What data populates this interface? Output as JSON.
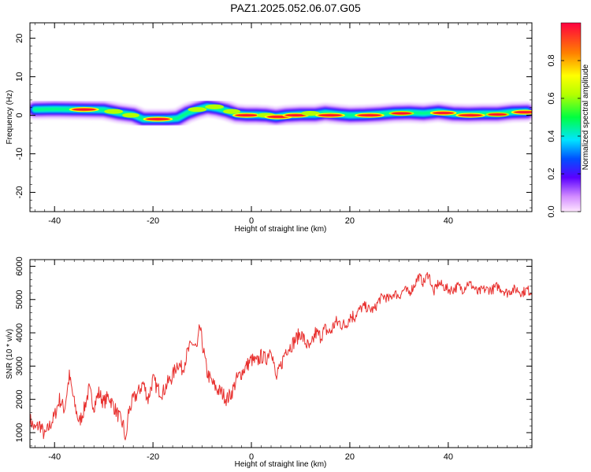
{
  "title": "PAZ1.2025.052.06.07.G05",
  "colors": {
    "snr_line": "#e8302e",
    "spectrogram_scale": [
      "#ff00ff",
      "#8000ff",
      "#0000ff",
      "#00ffff",
      "#00ff00",
      "#ffff00",
      "#ff8000",
      "#ff0033"
    ]
  },
  "chart_data": [
    {
      "type": "heatmap",
      "title": "",
      "xlabel": "Height of straight line (km)",
      "ylabel": "Frequency (Hz)",
      "xlim": [
        -45,
        57
      ],
      "ylim": [
        -25,
        24
      ],
      "xticks": [
        -40,
        -20,
        0,
        20,
        40
      ],
      "yticks": [
        -20,
        -10,
        0,
        10,
        20
      ],
      "grid": false,
      "colorbar": {
        "label": "Normalized spectral amplitude",
        "range": [
          0.0,
          1.0
        ],
        "ticks": [
          "0.0",
          "0.2",
          "0.4",
          "0.6",
          "0.8"
        ]
      },
      "ridge": {
        "x": [
          -44,
          -40,
          -35,
          -30,
          -27,
          -24,
          -22,
          -19,
          -17,
          -15,
          -13,
          -11,
          -9,
          -7,
          -5,
          -3,
          -1,
          1,
          3,
          5,
          7,
          10,
          13,
          15,
          18,
          20,
          23,
          26,
          29,
          32,
          35,
          38,
          41,
          44,
          47,
          50,
          53,
          56
        ],
        "y": [
          1.5,
          1.6,
          1.5,
          1.4,
          0.6,
          0.1,
          -1.0,
          -1.0,
          -1.0,
          -0.8,
          0.6,
          1.5,
          2.2,
          1.8,
          1.2,
          0.3,
          0.1,
          0.1,
          0.0,
          -0.4,
          0.0,
          0.2,
          0.2,
          0.6,
          0.2,
          0.0,
          0.1,
          0.3,
          0.6,
          0.7,
          0.5,
          0.9,
          0.4,
          0.3,
          0.4,
          0.4,
          0.8,
          0.9
        ],
        "peaks": [
          {
            "x": -34,
            "y": 1.5,
            "amp": 0.95
          },
          {
            "x": -28,
            "y": 1.0,
            "amp": 0.6
          },
          {
            "x": -24.5,
            "y": 0.0,
            "amp": 0.55
          },
          {
            "x": -19,
            "y": -1.0,
            "amp": 0.95
          },
          {
            "x": -11,
            "y": 1.5,
            "amp": 0.6
          },
          {
            "x": -7.5,
            "y": 2.2,
            "amp": 0.6
          },
          {
            "x": -4,
            "y": 1.0,
            "amp": 0.55
          },
          {
            "x": -1,
            "y": 0.0,
            "amp": 0.9
          },
          {
            "x": 3,
            "y": 0.0,
            "amp": 0.6
          },
          {
            "x": 5.5,
            "y": -0.4,
            "amp": 0.9
          },
          {
            "x": 9,
            "y": 0.0,
            "amp": 0.85
          },
          {
            "x": 12,
            "y": 0.5,
            "amp": 0.6
          },
          {
            "x": 16,
            "y": 0.0,
            "amp": 0.95
          },
          {
            "x": 24,
            "y": 0.0,
            "amp": 0.95
          },
          {
            "x": 30.5,
            "y": 0.5,
            "amp": 0.8
          },
          {
            "x": 39,
            "y": 0.6,
            "amp": 0.85
          },
          {
            "x": 44.5,
            "y": 0.0,
            "amp": 0.95
          },
          {
            "x": 50,
            "y": 0.2,
            "amp": 0.75
          },
          {
            "x": 55.5,
            "y": 0.8,
            "amp": 0.85
          }
        ]
      }
    },
    {
      "type": "line",
      "title": "",
      "xlabel": "Height of straight line (km)",
      "ylabel": "SNR (10 * v/v)",
      "xlim": [
        -45,
        57
      ],
      "ylim": [
        550,
        6200
      ],
      "xticks": [
        -40,
        -20,
        0,
        20,
        40
      ],
      "yticks": [
        1000,
        2000,
        3000,
        4000,
        5000,
        6000
      ],
      "grid": false,
      "series": [
        {
          "name": "",
          "x": [
            -45,
            -44,
            -43,
            -42,
            -41,
            -40,
            -39,
            -38,
            -37,
            -36,
            -35,
            -34,
            -33,
            -32,
            -31,
            -30,
            -29,
            -28,
            -27,
            -26,
            -25.5,
            -25,
            -24,
            -23,
            -22,
            -21,
            -20,
            -19,
            -18,
            -17,
            -16,
            -15,
            -14,
            -13,
            -12,
            -11,
            -10.5,
            -10,
            -9,
            -8,
            -7,
            -6,
            -5,
            -4,
            -3,
            -2,
            -1,
            0,
            1,
            2,
            3,
            4,
            5,
            6,
            7,
            8,
            9,
            10,
            11,
            12,
            13,
            14,
            15,
            16,
            17,
            18,
            19,
            20,
            21,
            22,
            23,
            24,
            25,
            26,
            27,
            28,
            29,
            30,
            31,
            32,
            33,
            34,
            35,
            36,
            37,
            38,
            39,
            40,
            41,
            42,
            43,
            44,
            45,
            46,
            47,
            48,
            49,
            50,
            51,
            52,
            53,
            54,
            55,
            56,
            57
          ],
          "values": [
            1400,
            1100,
            1250,
            900,
            1200,
            1500,
            2000,
            1700,
            2700,
            1900,
            1300,
            1700,
            2300,
            1800,
            2200,
            1900,
            2100,
            1800,
            1500,
            1200,
            700,
            1600,
            2000,
            2200,
            2500,
            2000,
            2600,
            2300,
            2200,
            2500,
            2700,
            3100,
            2900,
            3400,
            3700,
            3500,
            4200,
            3700,
            2800,
            2500,
            2300,
            2200,
            2000,
            2200,
            2600,
            2800,
            3000,
            3200,
            3100,
            3300,
            3200,
            3600,
            2600,
            3000,
            3500,
            3600,
            3800,
            4000,
            3700,
            3500,
            4000,
            3900,
            4100,
            4000,
            4300,
            4300,
            4200,
            4500,
            4500,
            4700,
            4800,
            4700,
            4700,
            5000,
            5100,
            5000,
            5200,
            5100,
            5300,
            5200,
            5400,
            5700,
            5500,
            5800,
            5200,
            5500,
            5400,
            5300,
            5300,
            5400,
            5300,
            5500,
            5400,
            5200,
            5300,
            5300,
            5300,
            5400,
            5300,
            5200,
            5300,
            5300,
            5200,
            5300,
            5200
          ]
        }
      ]
    }
  ]
}
